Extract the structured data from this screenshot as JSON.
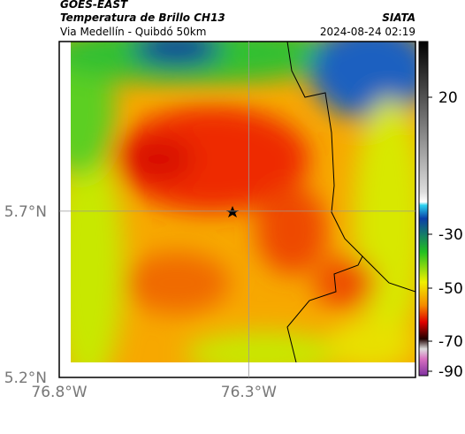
{
  "header": {
    "satellite": "GOES-EAST",
    "title": "Temperatura de Brillo CH13",
    "subtitle": "Via Medellín - Quibdó 50km",
    "source": "SIATA",
    "timestamp": "2024-08-24 02:19"
  },
  "map": {
    "xlim": [
      -76.8,
      -75.86
    ],
    "ylim": [
      5.2,
      6.21
    ],
    "xticks": [
      {
        "value": -76.8,
        "label": "76.8°W"
      },
      {
        "value": -76.3,
        "label": "76.3°W"
      }
    ],
    "yticks": [
      {
        "value": 5.2,
        "label": "5.2°N"
      },
      {
        "value": 5.7,
        "label": "5.7°N"
      }
    ]
  },
  "colorbar": {
    "ticks": [
      20,
      -30,
      -50,
      -70,
      -90
    ]
  }
}
